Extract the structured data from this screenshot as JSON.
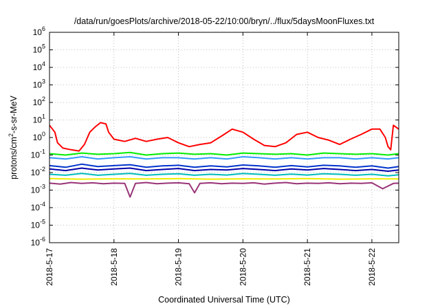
{
  "chart_data": {
    "type": "line",
    "title": "/data/run/goesPlots/archive/2018-05-22/10:00/bryn/../flux/5daysMoonFluxes.txt",
    "xlabel": "Coordinated Universal Time (UTC)",
    "ylabel": {
      "prefix": "protons/cm",
      "sup": "2",
      "suffix": "-s-sr-MeV"
    },
    "y_scale": "log",
    "ylim": [
      1e-06,
      1000000.0
    ],
    "y_ticks": [
      {
        "exp": "-6"
      },
      {
        "exp": "-5"
      },
      {
        "exp": "-4"
      },
      {
        "exp": "-3"
      },
      {
        "exp": "-2"
      },
      {
        "exp": "-1"
      },
      {
        "exp": "0"
      },
      {
        "exp": "1"
      },
      {
        "exp": "2"
      },
      {
        "exp": "3"
      },
      {
        "exp": "4"
      },
      {
        "exp": "5"
      },
      {
        "exp": "6"
      }
    ],
    "xlim": [
      "2018-05-17",
      "2018-05-22T10:00"
    ],
    "x_ticks": [
      "2018-5-17",
      "2018-5-18",
      "2018-5-19",
      "2018-5-20",
      "2018-5-21",
      "2018-5-22"
    ],
    "x_tick_dates": [
      "2018-05-17",
      "2018-05-18",
      "2018-05-19",
      "2018-05-20",
      "2018-05-21",
      "2018-05-22"
    ],
    "grid": true,
    "series": [
      {
        "color": "#ff0000",
        "x": [
          "2018-05-17T00:00",
          "2018-05-17T02:00",
          "2018-05-17T03:00",
          "2018-05-17T05:00",
          "2018-05-17T08:00",
          "2018-05-17T11:00",
          "2018-05-17T13:00",
          "2018-05-17T15:00",
          "2018-05-17T17:00",
          "2018-05-17T19:00",
          "2018-05-17T21:00",
          "2018-05-17T22:00",
          "2018-05-18T00:00",
          "2018-05-18T04:00",
          "2018-05-18T08:00",
          "2018-05-18T12:00",
          "2018-05-18T16:00",
          "2018-05-18T20:00",
          "2018-05-19T00:00",
          "2018-05-19T04:00",
          "2018-05-19T08:00",
          "2018-05-19T12:00",
          "2018-05-19T16:00",
          "2018-05-19T20:00",
          "2018-05-20T00:00",
          "2018-05-20T04:00",
          "2018-05-20T08:00",
          "2018-05-20T12:00",
          "2018-05-20T16:00",
          "2018-05-20T20:00",
          "2018-05-21T00:00",
          "2018-05-21T04:00",
          "2018-05-21T08:00",
          "2018-05-21T12:00",
          "2018-05-21T16:00",
          "2018-05-21T20:00",
          "2018-05-22T00:00",
          "2018-05-22T03:00",
          "2018-05-22T05:00",
          "2018-05-22T06:00",
          "2018-05-22T07:00",
          "2018-05-22T08:00",
          "2018-05-22T10:00"
        ],
        "values": [
          5,
          2,
          0.5,
          0.25,
          0.2,
          0.17,
          0.4,
          2,
          4,
          7,
          6,
          2,
          0.8,
          0.6,
          0.9,
          0.6,
          0.8,
          1,
          0.5,
          0.3,
          0.4,
          0.5,
          1.2,
          3,
          2,
          0.8,
          0.35,
          0.3,
          0.5,
          1.5,
          2,
          1,
          0.7,
          0.4,
          0.8,
          1.5,
          3,
          3,
          1,
          0.3,
          0.2,
          5,
          3
        ]
      },
      {
        "color": "#00ee00",
        "x": [
          "2018-05-17T00:00",
          "2018-05-17T06:00",
          "2018-05-17T12:00",
          "2018-05-17T18:00",
          "2018-05-18T00:00",
          "2018-05-18T06:00",
          "2018-05-18T12:00",
          "2018-05-18T18:00",
          "2018-05-19T00:00",
          "2018-05-19T06:00",
          "2018-05-19T12:00",
          "2018-05-19T18:00",
          "2018-05-20T00:00",
          "2018-05-20T06:00",
          "2018-05-20T12:00",
          "2018-05-20T18:00",
          "2018-05-21T00:00",
          "2018-05-21T06:00",
          "2018-05-21T12:00",
          "2018-05-21T18:00",
          "2018-05-22T00:00",
          "2018-05-22T06:00",
          "2018-05-22T10:00"
        ],
        "values": [
          0.12,
          0.1,
          0.13,
          0.11,
          0.12,
          0.14,
          0.1,
          0.12,
          0.13,
          0.11,
          0.12,
          0.1,
          0.13,
          0.12,
          0.11,
          0.12,
          0.1,
          0.13,
          0.12,
          0.11,
          0.12,
          0.1,
          0.12
        ]
      },
      {
        "color": "#3399ff",
        "x": [
          "2018-05-17T00:00",
          "2018-05-17T06:00",
          "2018-05-17T12:00",
          "2018-05-17T18:00",
          "2018-05-18T00:00",
          "2018-05-18T06:00",
          "2018-05-18T12:00",
          "2018-05-18T18:00",
          "2018-05-19T00:00",
          "2018-05-19T06:00",
          "2018-05-19T12:00",
          "2018-05-19T18:00",
          "2018-05-20T00:00",
          "2018-05-20T06:00",
          "2018-05-20T12:00",
          "2018-05-20T18:00",
          "2018-05-21T00:00",
          "2018-05-21T06:00",
          "2018-05-21T12:00",
          "2018-05-21T18:00",
          "2018-05-22T00:00",
          "2018-05-22T06:00",
          "2018-05-22T10:00"
        ],
        "values": [
          0.07,
          0.06,
          0.08,
          0.06,
          0.07,
          0.08,
          0.06,
          0.07,
          0.07,
          0.06,
          0.07,
          0.06,
          0.08,
          0.07,
          0.06,
          0.07,
          0.06,
          0.07,
          0.07,
          0.06,
          0.07,
          0.06,
          0.07
        ]
      },
      {
        "color": "#0033cc",
        "x": [
          "2018-05-17T00:00",
          "2018-05-17T06:00",
          "2018-05-17T12:00",
          "2018-05-17T18:00",
          "2018-05-18T00:00",
          "2018-05-18T06:00",
          "2018-05-18T12:00",
          "2018-05-18T18:00",
          "2018-05-19T00:00",
          "2018-05-19T06:00",
          "2018-05-19T12:00",
          "2018-05-19T18:00",
          "2018-05-20T00:00",
          "2018-05-20T06:00",
          "2018-05-20T12:00",
          "2018-05-20T18:00",
          "2018-05-21T00:00",
          "2018-05-21T06:00",
          "2018-05-21T12:00",
          "2018-05-21T18:00",
          "2018-05-22T00:00",
          "2018-05-22T06:00",
          "2018-05-22T10:00"
        ],
        "values": [
          0.025,
          0.02,
          0.03,
          0.022,
          0.025,
          0.028,
          0.02,
          0.024,
          0.026,
          0.02,
          0.024,
          0.021,
          0.027,
          0.024,
          0.02,
          0.025,
          0.021,
          0.026,
          0.024,
          0.02,
          0.024,
          0.018,
          0.022
        ]
      },
      {
        "color": "#0000aa",
        "x": [
          "2018-05-17T00:00",
          "2018-05-17T06:00",
          "2018-05-17T12:00",
          "2018-05-17T18:00",
          "2018-05-18T00:00",
          "2018-05-18T06:00",
          "2018-05-18T12:00",
          "2018-05-18T18:00",
          "2018-05-19T00:00",
          "2018-05-19T06:00",
          "2018-05-19T12:00",
          "2018-05-19T18:00",
          "2018-05-20T00:00",
          "2018-05-20T06:00",
          "2018-05-20T12:00",
          "2018-05-20T18:00",
          "2018-05-21T00:00",
          "2018-05-21T06:00",
          "2018-05-21T12:00",
          "2018-05-21T18:00",
          "2018-05-22T00:00",
          "2018-05-22T06:00",
          "2018-05-22T10:00"
        ],
        "values": [
          0.016,
          0.013,
          0.018,
          0.014,
          0.016,
          0.018,
          0.013,
          0.015,
          0.017,
          0.013,
          0.015,
          0.014,
          0.017,
          0.015,
          0.013,
          0.016,
          0.014,
          0.017,
          0.015,
          0.013,
          0.015,
          0.012,
          0.014
        ]
      },
      {
        "color": "#00bbbb",
        "x": [
          "2018-05-17T00:00",
          "2018-05-17T06:00",
          "2018-05-17T12:00",
          "2018-05-17T18:00",
          "2018-05-18T00:00",
          "2018-05-18T06:00",
          "2018-05-18T12:00",
          "2018-05-18T18:00",
          "2018-05-19T00:00",
          "2018-05-19T06:00",
          "2018-05-19T12:00",
          "2018-05-19T18:00",
          "2018-05-20T00:00",
          "2018-05-20T06:00",
          "2018-05-20T12:00",
          "2018-05-20T18:00",
          "2018-05-21T00:00",
          "2018-05-21T06:00",
          "2018-05-21T12:00",
          "2018-05-21T18:00",
          "2018-05-22T00:00",
          "2018-05-22T06:00",
          "2018-05-22T10:00"
        ],
        "values": [
          0.008,
          0.007,
          0.009,
          0.007,
          0.008,
          0.009,
          0.007,
          0.008,
          0.0085,
          0.007,
          0.008,
          0.0072,
          0.0088,
          0.008,
          0.007,
          0.0082,
          0.0072,
          0.0086,
          0.008,
          0.007,
          0.008,
          0.0065,
          0.0075
        ]
      },
      {
        "color": "#eeee00",
        "x": [
          "2018-05-17T00:00",
          "2018-05-17T12:00",
          "2018-05-18T00:00",
          "2018-05-18T12:00",
          "2018-05-19T00:00",
          "2018-05-19T12:00",
          "2018-05-20T00:00",
          "2018-05-20T12:00",
          "2018-05-21T00:00",
          "2018-05-21T12:00",
          "2018-05-22T00:00",
          "2018-05-22T10:00"
        ],
        "values": [
          0.0045,
          0.0042,
          0.0044,
          0.0043,
          0.0045,
          0.0042,
          0.0044,
          0.0043,
          0.0045,
          0.0042,
          0.0044,
          0.0043
        ]
      },
      {
        "color": "#993377",
        "x": [
          "2018-05-17T00:00",
          "2018-05-17T04:00",
          "2018-05-17T08:00",
          "2018-05-17T12:00",
          "2018-05-17T16:00",
          "2018-05-17T20:00",
          "2018-05-18T00:00",
          "2018-05-18T04:00",
          "2018-05-18T06:00",
          "2018-05-18T08:00",
          "2018-05-18T12:00",
          "2018-05-18T16:00",
          "2018-05-18T20:00",
          "2018-05-19T00:00",
          "2018-05-19T04:00",
          "2018-05-19T06:00",
          "2018-05-19T08:00",
          "2018-05-19T12:00",
          "2018-05-19T16:00",
          "2018-05-19T20:00",
          "2018-05-20T00:00",
          "2018-05-20T04:00",
          "2018-05-20T08:00",
          "2018-05-20T12:00",
          "2018-05-20T16:00",
          "2018-05-20T20:00",
          "2018-05-21T00:00",
          "2018-05-21T04:00",
          "2018-05-21T08:00",
          "2018-05-21T12:00",
          "2018-05-21T16:00",
          "2018-05-21T20:00",
          "2018-05-22T00:00",
          "2018-05-22T04:00",
          "2018-05-22T08:00",
          "2018-05-22T10:00"
        ],
        "values": [
          0.0025,
          0.0022,
          0.0027,
          0.0024,
          0.0026,
          0.0023,
          0.0025,
          0.0024,
          0.0004,
          0.0024,
          0.0027,
          0.0023,
          0.0025,
          0.0026,
          0.0023,
          0.0007,
          0.0024,
          0.0026,
          0.0023,
          0.0025,
          0.0024,
          0.0026,
          0.0022,
          0.0025,
          0.0027,
          0.0023,
          0.0025,
          0.0024,
          0.0026,
          0.0023,
          0.0025,
          0.0024,
          0.0026,
          0.0012,
          0.0024,
          0.0025
        ]
      }
    ]
  }
}
